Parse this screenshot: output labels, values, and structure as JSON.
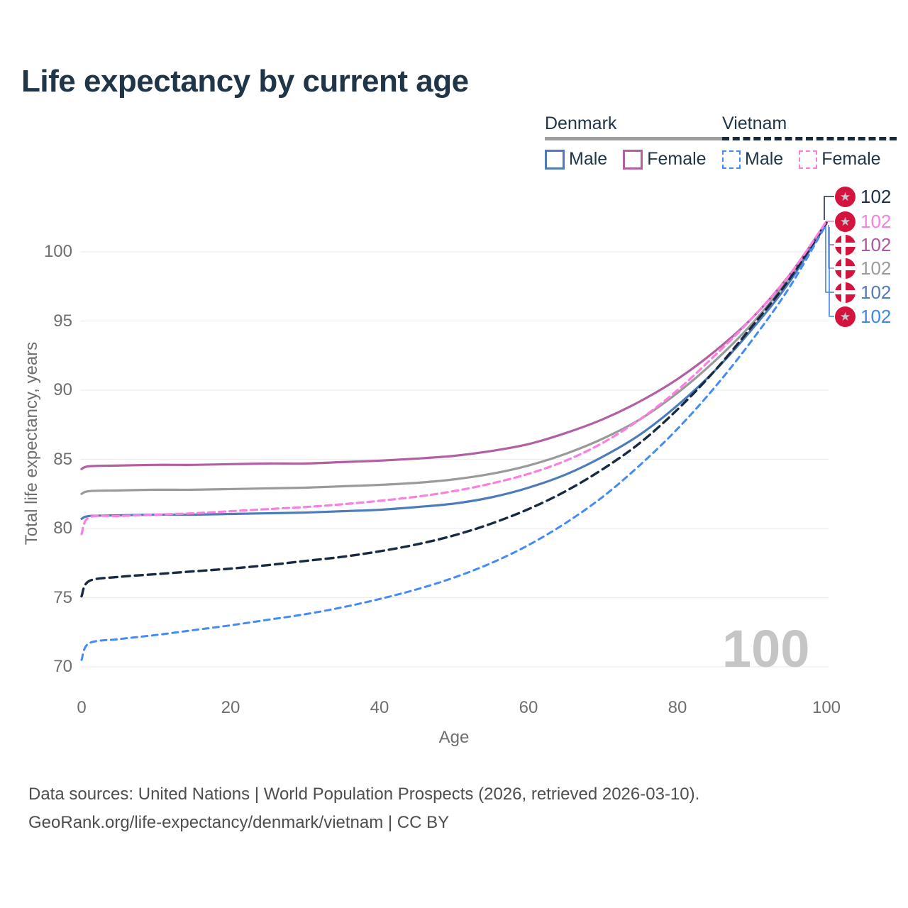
{
  "title": "Life expectancy by current age",
  "colors": {
    "title_text": "#213549",
    "legend_text": "#213549",
    "axis_text": "#6e6e6e",
    "gridline": "#ededed",
    "flag_red": "#d5133f",
    "vietnam_star": "#c4c7cc",
    "watermark_gray": "#c5c5c5",
    "denmark_male": "#4e7cba",
    "denmark_female": "#b25fa3",
    "denmark_total": "#9a9a9a",
    "vietnam_male": "#428bf9",
    "vietnam_female": "#fb7fe1",
    "vietnam_total": "#182a42"
  },
  "legend": {
    "groups": [
      {
        "country": "Denmark",
        "line_style": "solid",
        "underline_color": "#9e9e9e",
        "items": [
          {
            "label": "Male",
            "color": "#4e7cba",
            "dashed": false
          },
          {
            "label": "Female",
            "color": "#b25fa3",
            "dashed": false
          }
        ]
      },
      {
        "country": "Vietnam",
        "line_style": "dashed",
        "underline_color": "#182a42",
        "items": [
          {
            "label": "Male",
            "color": "#428bf9",
            "dashed": true
          },
          {
            "label": "Female",
            "color": "#fb7fe1",
            "dashed": true
          }
        ]
      }
    ]
  },
  "watermark": "100",
  "end_labels": [
    {
      "value": "102",
      "flag": "vietnam",
      "series": "Vietnam (both sexes)",
      "color": "#1e2f48"
    },
    {
      "value": "102",
      "flag": "vietnam",
      "series": "Vietnam Female",
      "color": "#fb7fe1"
    },
    {
      "value": "102",
      "flag": "denmark",
      "series": "Denmark Female",
      "color": "#b0569e"
    },
    {
      "value": "102",
      "flag": "denmark",
      "series": "Denmark (both sexes)",
      "color": "#9b9b9b"
    },
    {
      "value": "102",
      "flag": "denmark",
      "series": "Denmark Male",
      "color": "#4f7cba"
    },
    {
      "value": "102",
      "flag": "vietnam",
      "series": "Vietnam Male",
      "color": "#3d87f5"
    }
  ],
  "footer": {
    "line1": "Data sources: United Nations | World Population Prospects (2026, retrieved 2026-03-10).",
    "line2": "GeoRank.org/life-expectancy/denmark/vietnam | CC BY"
  },
  "chart_data": {
    "type": "line",
    "title": "Life expectancy by current age",
    "xlabel": "Age",
    "ylabel": "Total life expectancy, years",
    "x_ticks": [
      0,
      20,
      40,
      60,
      80,
      100
    ],
    "y_ticks": [
      70,
      75,
      80,
      85,
      90,
      95,
      100
    ],
    "xlim": [
      0,
      100
    ],
    "ylim": [
      69,
      103
    ],
    "grid": "horizontal",
    "legend_position": "top-right",
    "hovered_age_indicator": "100",
    "x": [
      0,
      1,
      5,
      10,
      15,
      20,
      25,
      30,
      35,
      40,
      45,
      50,
      55,
      60,
      65,
      70,
      75,
      80,
      85,
      90,
      95,
      100
    ],
    "series": [
      {
        "name": "Denmark (both sexes)",
        "country": "Denmark",
        "color": "#9a9a9a",
        "dash": null,
        "width": 3.2,
        "values": [
          82.5,
          82.7,
          82.75,
          82.8,
          82.8,
          82.85,
          82.9,
          82.95,
          83.05,
          83.15,
          83.3,
          83.55,
          83.95,
          84.55,
          85.4,
          86.5,
          87.9,
          89.8,
          92.1,
          94.8,
          98.1,
          102.1
        ]
      },
      {
        "name": "Denmark Male",
        "country": "Denmark",
        "color": "#4e7cba",
        "dash": null,
        "width": 3.2,
        "values": [
          80.7,
          80.9,
          80.95,
          81.0,
          81.0,
          81.05,
          81.1,
          81.15,
          81.25,
          81.35,
          81.55,
          81.8,
          82.25,
          82.95,
          83.9,
          85.2,
          86.8,
          88.9,
          91.4,
          94.4,
          97.8,
          102.05
        ]
      },
      {
        "name": "Denmark Female",
        "country": "Denmark",
        "color": "#b25fa3",
        "dash": null,
        "width": 3.2,
        "values": [
          84.3,
          84.5,
          84.55,
          84.6,
          84.6,
          84.65,
          84.7,
          84.7,
          84.8,
          84.9,
          85.05,
          85.25,
          85.6,
          86.1,
          86.9,
          87.9,
          89.2,
          90.8,
          92.8,
          95.2,
          98.3,
          102.15
        ]
      },
      {
        "name": "Vietnam (both sexes)",
        "country": "Vietnam",
        "color": "#182a42",
        "dash": "11 7",
        "width": 3.4,
        "values": [
          75.1,
          76.2,
          76.5,
          76.7,
          76.9,
          77.1,
          77.35,
          77.65,
          77.95,
          78.35,
          78.85,
          79.5,
          80.35,
          81.4,
          82.7,
          84.3,
          86.2,
          88.6,
          91.4,
          94.6,
          98.0,
          102.1
        ]
      },
      {
        "name": "Vietnam Male",
        "country": "Vietnam",
        "color": "#428bf9",
        "dash": "8 6.5",
        "width": 3,
        "values": [
          70.5,
          71.7,
          72.0,
          72.3,
          72.65,
          73.0,
          73.4,
          73.8,
          74.3,
          74.9,
          75.6,
          76.45,
          77.5,
          78.8,
          80.4,
          82.3,
          84.6,
          87.2,
          90.2,
          93.6,
          97.4,
          102.0
        ]
      },
      {
        "name": "Vietnam Female",
        "country": "Vietnam",
        "color": "#fb7fe1",
        "dash": "9 6",
        "width": 3.2,
        "values": [
          79.6,
          80.8,
          80.9,
          81.0,
          81.1,
          81.25,
          81.4,
          81.55,
          81.75,
          82.0,
          82.3,
          82.7,
          83.25,
          83.95,
          84.9,
          86.2,
          87.9,
          90.0,
          92.5,
          95.2,
          98.3,
          102.2
        ]
      }
    ]
  }
}
